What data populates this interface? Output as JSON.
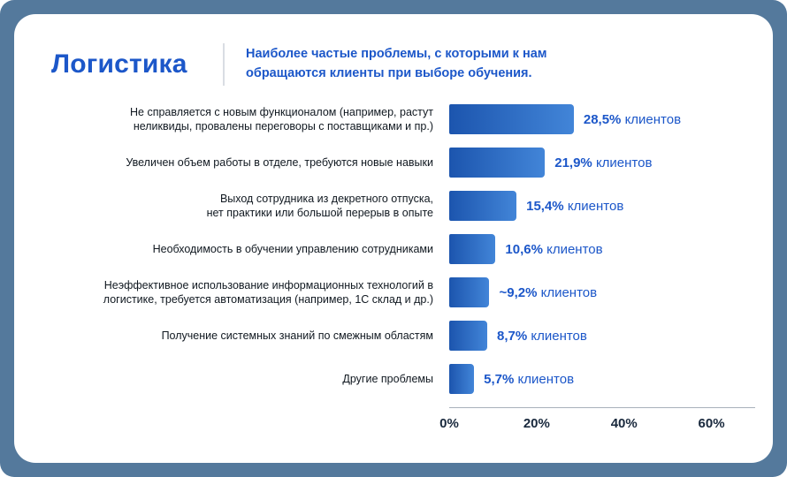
{
  "page": {
    "frame_background": "#54799c",
    "card_background": "#ffffff"
  },
  "header": {
    "title": "Логистика",
    "subtitle_line1": "Наиболее частые проблемы, с которыми к нам",
    "subtitle_line2": "обращаются клиенты при выборе обучения.",
    "accent_color": "#1c57c9"
  },
  "chart_data": {
    "type": "bar",
    "orientation": "horizontal",
    "title": "Логистика",
    "subtitle": "Наиболее частые проблемы, с которыми к нам обращаются клиенты при выборе обучения.",
    "unit_suffix": "клиентов",
    "categories": [
      [
        "Не справляется с новым функционалом (например, растут",
        "неликвиды, провалены переговоры с поставщиками и пр.)"
      ],
      [
        "Увеличен объем работы в отделе, требуются новые навыки"
      ],
      [
        "Выход сотрудника из декретного отпуска,",
        "нет практики или большой перерыв в опыте"
      ],
      [
        "Необходимость в обучении управлению сотрудниками"
      ],
      [
        "Неэффективное использование информационных технологий в",
        "логистике, требуется автоматизация (например, 1С склад и др.)"
      ],
      [
        "Получение системных знаний по смежным областям"
      ],
      [
        "Другие проблемы"
      ]
    ],
    "values": [
      28.5,
      21.9,
      15.4,
      10.6,
      9.2,
      8.7,
      5.7
    ],
    "value_labels": [
      "28,5%",
      "21,9%",
      "15,4%",
      "10,6%",
      "~9,2%",
      "8,7%",
      "5,7%"
    ],
    "xlim": [
      0,
      70
    ],
    "x_ticks": [
      {
        "value": 0,
        "label": "0%"
      },
      {
        "value": 20,
        "label": "20%"
      },
      {
        "value": 40,
        "label": "40%"
      },
      {
        "value": 60,
        "label": "60%"
      }
    ],
    "grid": false,
    "legend": "none",
    "bar_color_start": "#1c55ae",
    "bar_color_end": "#4285d8"
  }
}
